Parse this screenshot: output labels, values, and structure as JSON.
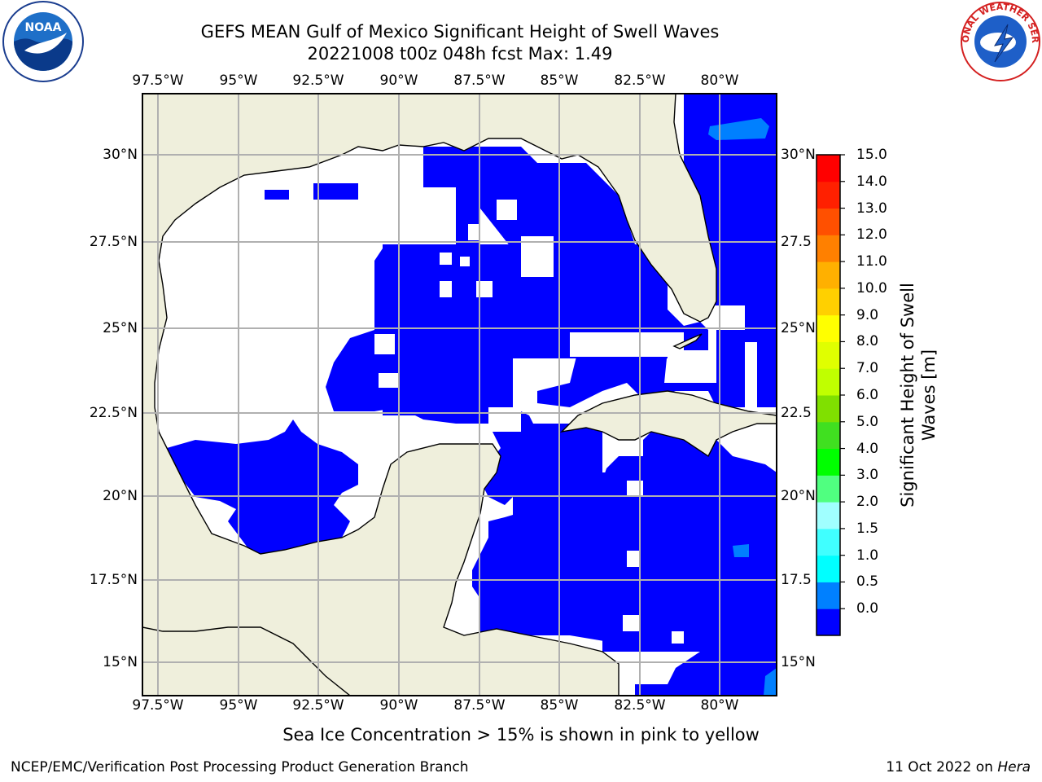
{
  "title_line1": "GEFS MEAN Gulf of Mexico Significant Height of Swell Waves",
  "title_line2": "20221008 t00z 048h fcst   Max: 1.49",
  "lon_labels": [
    "97.5°W",
    "95°W",
    "92.5°W",
    "90°W",
    "87.5°W",
    "85°W",
    "82.5°W",
    "80°W"
  ],
  "lat_labels_left": [
    "30°N",
    "27.5°N",
    "25°N",
    "22.5°N",
    "20°N",
    "17.5°N",
    "15°N"
  ],
  "lat_labels_right": [
    "30°N",
    "27.5",
    "25°N",
    "22.5",
    "20°N",
    "17.5",
    "15°N"
  ],
  "colorbar": {
    "title": "Significant Height of Swell Waves [m]",
    "title_line1": "Significant Height of Swell",
    "title_line2": "Waves [m]",
    "tick_labels": [
      "15.0",
      "14.0",
      "13.0",
      "12.0",
      "11.0",
      "10.0",
      "9.0",
      "8.0",
      "7.0",
      "6.0",
      "5.0",
      "4.0",
      "3.0",
      "2.0",
      "1.5",
      "1.0",
      "0.5",
      "0.0"
    ],
    "levels": [
      0.0,
      0.5,
      1.0,
      1.5,
      2.0,
      3.0,
      4.0,
      5.0,
      6.0,
      7.0,
      8.0,
      9.0,
      10.0,
      11.0,
      12.0,
      13.0,
      14.0,
      15.0
    ],
    "colors": [
      "#0000ff",
      "#0080ff",
      "#00ffff",
      "#40ffff",
      "#a0ffff",
      "#50ff80",
      "#00ff00",
      "#40e020",
      "#80e000",
      "#c0ff00",
      "#e0ff00",
      "#ffff00",
      "#ffd000",
      "#ffb000",
      "#ff8000",
      "#ff5000",
      "#ff2000",
      "#ff0000"
    ]
  },
  "map_colors": {
    "land": "#efefdc",
    "ocean_low": "#0000ff",
    "ocean_mid": "#0080ff",
    "ocean_high": "#00ffff",
    "no_data": "#ffffff",
    "grid": "#b0b0b0"
  },
  "footer_note": "Sea Ice Concentration > 15% is shown in pink to yellow",
  "footer_left": "NCEP/EMC/Verification Post Processing Product Generation Branch",
  "footer_right_prefix": "11 Oct 2022 on ",
  "footer_right_host": "Hera",
  "logos": {
    "left": "NOAA",
    "right_text": "NATIONAL WEATHER SERVICE"
  }
}
